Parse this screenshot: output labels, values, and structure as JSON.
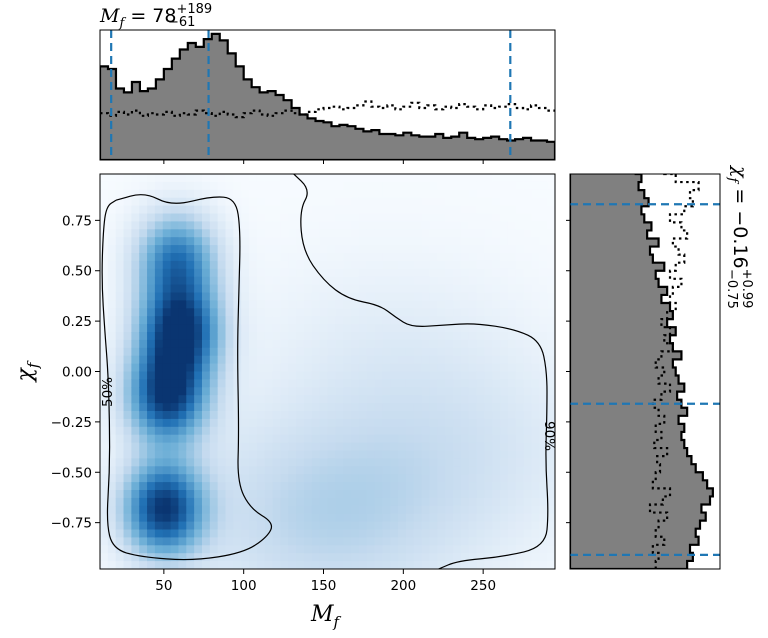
{
  "chart_data": [
    {
      "type": "heatmap",
      "panel": "joint",
      "xlabel_symbol": "M",
      "xlabel_sub": "f",
      "ylabel_symbol": "χ",
      "ylabel_sub": "f",
      "xlim": [
        10,
        295
      ],
      "ylim": [
        -0.98,
        0.98
      ],
      "x_ticks": [
        50,
        100,
        150,
        200,
        250
      ],
      "y_ticks": [
        0.75,
        0.5,
        0.25,
        0.0,
        -0.25,
        -0.5,
        -0.75
      ],
      "y_tick_labels": [
        "0.75",
        "0.50",
        "0.25",
        "0.00",
        "−0.25",
        "−0.50",
        "−0.75"
      ],
      "colormap": [
        "#f7fbff",
        "#c6dbef",
        "#6baed6",
        "#2171b5",
        "#08306b"
      ],
      "density_peaks": [
        {
          "x": 60,
          "y": 0.2,
          "weight": 1.0
        },
        {
          "x": 52,
          "y": -0.12,
          "weight": 0.95
        },
        {
          "x": 50,
          "y": -0.68,
          "weight": 0.95
        },
        {
          "x": 58,
          "y": 0.55,
          "weight": 0.7
        },
        {
          "x": 150,
          "y": -0.72,
          "weight": 0.25
        },
        {
          "x": 240,
          "y": -0.4,
          "weight": 0.12
        },
        {
          "x": 190,
          "y": 0.1,
          "weight": 0.08
        }
      ],
      "contours": [
        {
          "label": "50%",
          "label_at": {
            "x": 16,
            "y": -0.1
          },
          "path": [
            [
              20,
              0.85
            ],
            [
              38,
              0.89
            ],
            [
              55,
              0.82
            ],
            [
              80,
              0.87
            ],
            [
              95,
              0.86
            ],
            [
              98,
              0.7
            ],
            [
              97,
              0.4
            ],
            [
              96,
              0.1
            ],
            [
              97,
              -0.3
            ],
            [
              96,
              -0.55
            ],
            [
              104,
              -0.68
            ],
            [
              119,
              -0.75
            ],
            [
              115,
              -0.82
            ],
            [
              100,
              -0.9
            ],
            [
              68,
              -0.94
            ],
            [
              35,
              -0.92
            ],
            [
              18,
              -0.88
            ],
            [
              14,
              -0.75
            ],
            [
              16,
              -0.5
            ],
            [
              16,
              -0.25
            ],
            [
              15,
              0.0
            ],
            [
              13,
              0.2
            ],
            [
              11,
              0.45
            ],
            [
              12,
              0.7
            ],
            [
              14,
              0.82
            ],
            [
              20,
              0.85
            ]
          ]
        },
        {
          "label": "90%",
          "label_at": {
            "x": 291,
            "y": -0.32
          },
          "path": [
            [
              130,
              0.99
            ],
            [
              142,
              0.9
            ],
            [
              135,
              0.8
            ],
            [
              137,
              0.6
            ],
            [
              150,
              0.45
            ],
            [
              165,
              0.36
            ],
            [
              185,
              0.33
            ],
            [
              195,
              0.27
            ],
            [
              205,
              0.22
            ],
            [
              225,
              0.23
            ],
            [
              245,
              0.24
            ],
            [
              270,
              0.21
            ],
            [
              286,
              0.15
            ],
            [
              290,
              0.0
            ],
            [
              290,
              -0.2
            ],
            [
              289,
              -0.45
            ],
            [
              291,
              -0.7
            ],
            [
              289,
              -0.87
            ],
            [
              262,
              -0.92
            ],
            [
              234,
              -0.94
            ],
            [
              222,
              -0.98
            ]
          ]
        }
      ]
    },
    {
      "type": "histogram",
      "panel": "top-marginal",
      "title_symbol": "M",
      "title_sub": "f",
      "title_value": " = 78",
      "title_sup": "+189",
      "title_lower": "−61",
      "x_edges_start": 10,
      "bin_width": 5,
      "posterior": [
        0.72,
        0.7,
        0.55,
        0.52,
        0.6,
        0.53,
        0.55,
        0.62,
        0.7,
        0.78,
        0.85,
        0.9,
        0.87,
        0.93,
        0.97,
        0.92,
        0.82,
        0.72,
        0.62,
        0.56,
        0.52,
        0.53,
        0.5,
        0.46,
        0.4,
        0.35,
        0.32,
        0.3,
        0.29,
        0.26,
        0.27,
        0.26,
        0.24,
        0.22,
        0.23,
        0.2,
        0.2,
        0.19,
        0.21,
        0.19,
        0.18,
        0.18,
        0.2,
        0.17,
        0.18,
        0.21,
        0.17,
        0.16,
        0.17,
        0.18,
        0.16,
        0.15,
        0.16,
        0.17,
        0.15,
        0.15,
        0.14
      ],
      "prior": [
        0.36,
        0.34,
        0.37,
        0.35,
        0.38,
        0.34,
        0.36,
        0.35,
        0.37,
        0.34,
        0.36,
        0.35,
        0.38,
        0.36,
        0.34,
        0.37,
        0.35,
        0.33,
        0.36,
        0.38,
        0.35,
        0.34,
        0.36,
        0.38,
        0.36,
        0.35,
        0.37,
        0.39,
        0.4,
        0.41,
        0.39,
        0.4,
        0.42,
        0.45,
        0.41,
        0.4,
        0.42,
        0.39,
        0.41,
        0.44,
        0.4,
        0.42,
        0.39,
        0.41,
        0.4,
        0.43,
        0.41,
        0.39,
        0.42,
        0.4,
        0.41,
        0.43,
        0.4,
        0.39,
        0.42,
        0.4,
        0.38
      ],
      "ylim": [
        0,
        1.0
      ],
      "x_ticks": [
        50,
        100,
        150,
        200,
        250
      ],
      "quantile_lines": [
        17,
        78,
        267
      ],
      "line_color": "#1f77b4",
      "fill_color": "#808080"
    },
    {
      "type": "histogram",
      "panel": "right-marginal",
      "orientation": "horizontal",
      "title_symbol": "χ",
      "title_sub": "f",
      "title_value": " = −0.16",
      "title_sup": "+0.99",
      "title_lower": "−0.75",
      "y_edges_start": -0.98,
      "bin_width": 0.04,
      "posterior": [
        0.82,
        0.86,
        0.84,
        0.9,
        0.88,
        0.91,
        0.95,
        0.92,
        0.98,
        1.0,
        0.96,
        0.93,
        0.88,
        0.85,
        0.82,
        0.8,
        0.78,
        0.8,
        0.76,
        0.82,
        0.78,
        0.75,
        0.8,
        0.76,
        0.74,
        0.72,
        0.78,
        0.72,
        0.7,
        0.74,
        0.68,
        0.72,
        0.7,
        0.64,
        0.68,
        0.62,
        0.6,
        0.66,
        0.58,
        0.56,
        0.62,
        0.54,
        0.57,
        0.52,
        0.5,
        0.55,
        0.52,
        0.48,
        0.5,
        0.46
      ],
      "prior": [
        0.6,
        0.62,
        0.58,
        0.66,
        0.6,
        0.62,
        0.68,
        0.56,
        0.65,
        0.7,
        0.58,
        0.6,
        0.63,
        0.61,
        0.68,
        0.59,
        0.64,
        0.6,
        0.66,
        0.62,
        0.58,
        0.64,
        0.7,
        0.62,
        0.66,
        0.6,
        0.64,
        0.72,
        0.66,
        0.7,
        0.64,
        0.68,
        0.74,
        0.7,
        0.72,
        0.78,
        0.7,
        0.74,
        0.8,
        0.76,
        0.72,
        0.82,
        0.78,
        0.7,
        0.8,
        0.86,
        0.84,
        0.9,
        0.74,
        0.66
      ],
      "xlim": [
        0,
        1.05
      ],
      "quantile_lines": [
        -0.91,
        -0.16,
        0.83
      ],
      "line_color": "#1f77b4",
      "fill_color": "#808080"
    }
  ]
}
